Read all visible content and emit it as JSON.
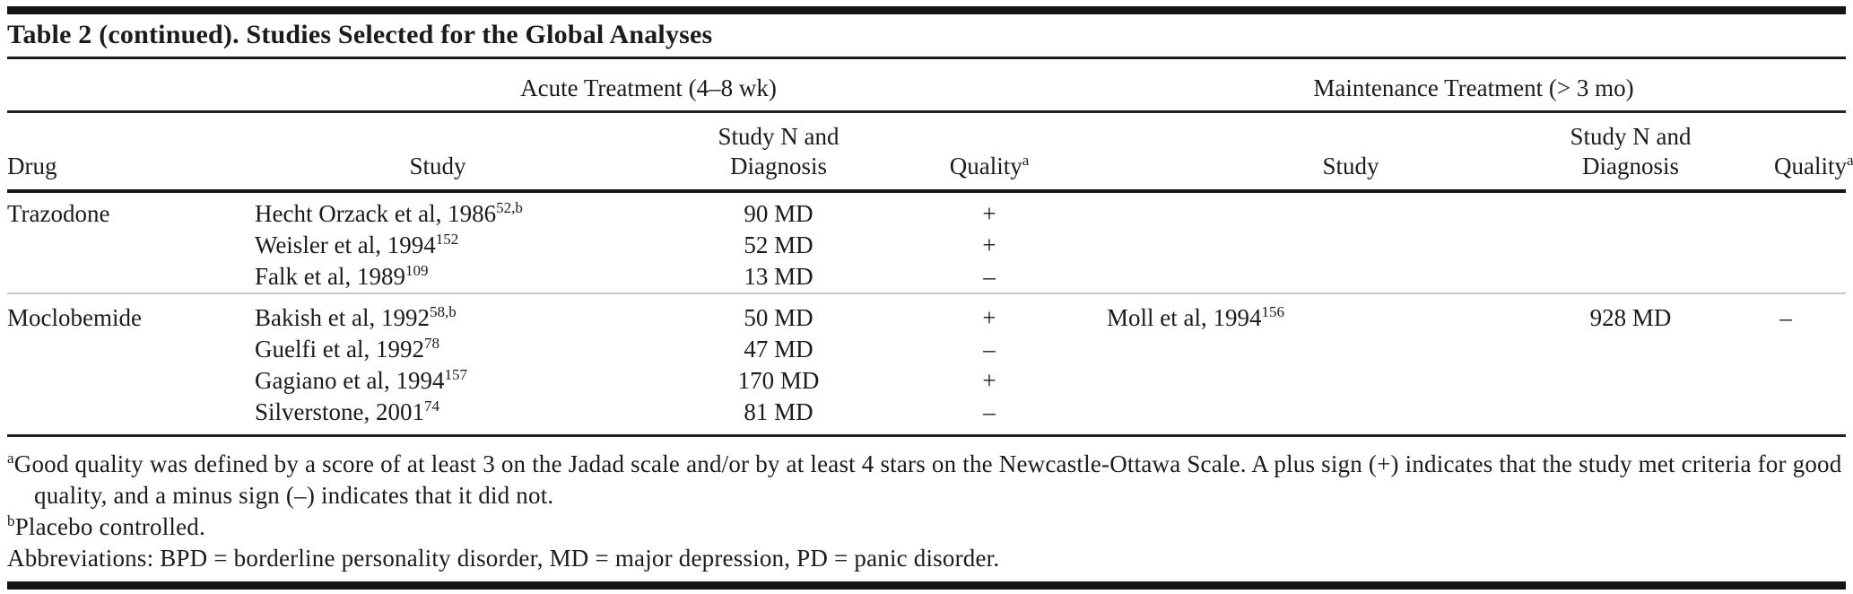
{
  "title": "Table 2 (continued). Studies Selected for the Global Analyses",
  "spanners": {
    "acute": "Acute Treatment (4–8 wk)",
    "maintenance": "Maintenance Treatment (> 3 mo)"
  },
  "columns": {
    "drug": "Drug",
    "study": "Study",
    "n_line1": "Study N and",
    "n_line2": "Diagnosis",
    "quality": "Quality",
    "quality_sup": "a"
  },
  "groups": [
    {
      "drug": "Trazodone",
      "rows": [
        {
          "acute_study": "Hecht Orzack et al, 1986",
          "acute_ref": "52,b",
          "acute_n": "90 MD",
          "acute_quality": "+"
        },
        {
          "acute_study": "Weisler et al, 1994",
          "acute_ref": "152",
          "acute_n": "52 MD",
          "acute_quality": "+"
        },
        {
          "acute_study": "Falk et al, 1989",
          "acute_ref": "109",
          "acute_n": "13 MD",
          "acute_quality": "–"
        }
      ]
    },
    {
      "drug": "Moclobemide",
      "rows": [
        {
          "acute_study": "Bakish et al, 1992",
          "acute_ref": "58,b",
          "acute_n": "50 MD",
          "acute_quality": "+",
          "maint_study": "Moll et al, 1994",
          "maint_ref": "156",
          "maint_n": "928 MD",
          "maint_quality": "–"
        },
        {
          "acute_study": "Guelfi et al, 1992",
          "acute_ref": "78",
          "acute_n": "47 MD",
          "acute_quality": "–"
        },
        {
          "acute_study": "Gagiano et al, 1994",
          "acute_ref": "157",
          "acute_n": "170 MD",
          "acute_quality": "+"
        },
        {
          "acute_study": "Silverstone, 2001",
          "acute_ref": "74",
          "acute_n": "81 MD",
          "acute_quality": "–"
        }
      ]
    }
  ],
  "footnotes": {
    "a_sup": "a",
    "a_text": "Good quality was defined by a score of at least 3 on the Jadad scale and/or by at least 4 stars on the Newcastle-Ottawa Scale. A plus sign (+) indicates that the study met criteria for good quality, and a minus sign (–) indicates that it did not.",
    "b_sup": "b",
    "b_text": "Placebo controlled.",
    "abbreviations": "Abbreviations: BPD = borderline personality disorder, MD = major depression, PD = panic disorder."
  }
}
